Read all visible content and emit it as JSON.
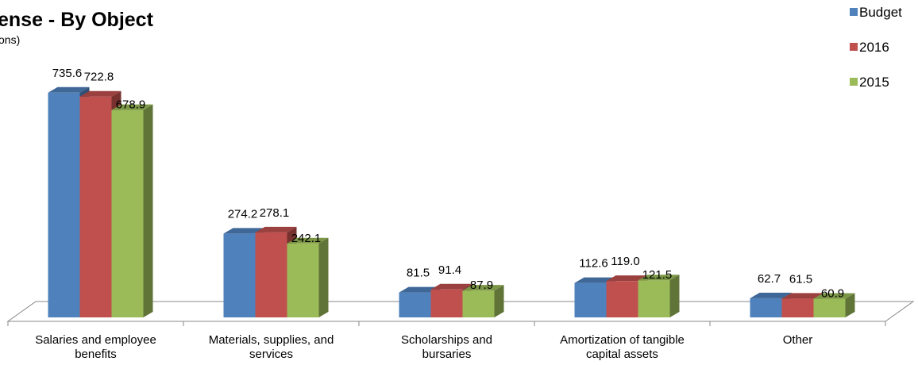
{
  "chart_data": {
    "type": "bar3d",
    "title": "ense - By Object",
    "subtitle": "ons)",
    "categories": [
      "Salaries and employee benefits",
      "Materials, supplies, and services",
      "Scholarships and bursaries",
      "Amortization of tangible capital assets",
      "Other"
    ],
    "series": [
      {
        "name": "Budget",
        "color": "#4f81bd",
        "values": [
          735.6,
          274.2,
          81.5,
          112.6,
          62.7
        ],
        "value_labels": [
          "735.6",
          "274.2",
          "81.5",
          "112.6",
          "62.7"
        ]
      },
      {
        "name": "2016",
        "color": "#c0504d",
        "values": [
          722.8,
          278.1,
          91.4,
          119.0,
          61.5
        ],
        "value_labels": [
          "722.8",
          "278.1",
          "91.4",
          "119.0",
          "61.5"
        ]
      },
      {
        "name": "2015",
        "color": "#9bbb59",
        "values": [
          678.9,
          242.1,
          87.9,
          121.5,
          60.9
        ],
        "value_labels": [
          "678.9",
          "242.1",
          "87.9",
          "121.5",
          "60.9"
        ]
      }
    ],
    "legend": "top-right"
  }
}
